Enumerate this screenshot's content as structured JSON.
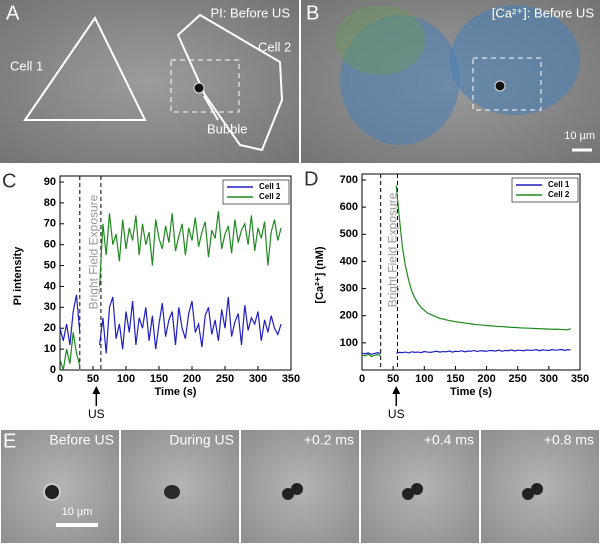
{
  "panels": {
    "a": {
      "label": "A",
      "title": "PI: Before US",
      "cell1": "Cell 1",
      "cell2": "Cell 2",
      "bubble": "Bubble"
    },
    "b": {
      "label": "B",
      "title": "[Ca²⁺]: Before US",
      "scale": "10 µm"
    },
    "e": {
      "label": "E",
      "frames": [
        "Before US",
        "During US",
        "+0.2 ms",
        "+0.4 ms",
        "+0.8 ms"
      ],
      "scale": "10 µm"
    }
  },
  "chart_data": [
    {
      "type": "line",
      "label": "C",
      "ylabel": "PI intensity",
      "xlabel": "Time (s)",
      "annotation": "Bright Field Exposure",
      "arrow_label": "US",
      "arrow_x": 55,
      "vlines": [
        30,
        62
      ],
      "xlim": [
        0,
        350
      ],
      "xticks": [
        0,
        50,
        100,
        150,
        200,
        250,
        300,
        350
      ],
      "ylim": [
        0,
        90
      ],
      "yticks": [
        0,
        10,
        20,
        30,
        40,
        50,
        60,
        70,
        80,
        90
      ],
      "x": [
        0,
        5,
        10,
        15,
        20,
        25,
        30,
        35,
        40,
        45,
        50,
        55,
        60,
        65,
        70,
        75,
        80,
        85,
        90,
        95,
        100,
        105,
        110,
        115,
        120,
        125,
        130,
        135,
        140,
        145,
        150,
        155,
        160,
        165,
        170,
        175,
        180,
        185,
        190,
        195,
        200,
        205,
        210,
        215,
        220,
        225,
        230,
        235,
        240,
        245,
        250,
        255,
        260,
        265,
        270,
        275,
        280,
        285,
        290,
        295,
        300,
        305,
        310,
        315,
        320,
        325,
        330,
        335
      ],
      "series": [
        {
          "name": "Cell 1",
          "color": "#1f1fbf",
          "values": [
            20,
            14,
            22,
            12,
            28,
            36,
            18,
            null,
            null,
            null,
            null,
            null,
            12,
            25,
            8,
            30,
            35,
            15,
            22,
            10,
            28,
            18,
            33,
            12,
            25,
            20,
            30,
            14,
            26,
            10,
            22,
            32,
            16,
            24,
            28,
            12,
            30,
            20,
            15,
            27,
            33,
            18,
            22,
            11,
            26,
            30,
            17,
            24,
            14,
            29,
            20,
            35,
            16,
            23,
            27,
            12,
            31,
            19,
            25,
            22,
            28,
            14,
            24,
            18,
            26,
            20,
            17,
            22
          ]
        },
        {
          "name": "Cell 2",
          "color": "#1f8a1f",
          "values": [
            5,
            0,
            10,
            3,
            18,
            8,
            2,
            null,
            null,
            null,
            null,
            null,
            40,
            70,
            55,
            75,
            60,
            65,
            52,
            72,
            58,
            68,
            62,
            74,
            55,
            70,
            60,
            66,
            50,
            72,
            63,
            58,
            69,
            61,
            75,
            57,
            64,
            70,
            55,
            68,
            62,
            73,
            59,
            66,
            71,
            54,
            67,
            63,
            76,
            58,
            65,
            69,
            56,
            72,
            61,
            67,
            70,
            60,
            74,
            57,
            68,
            63,
            71,
            50,
            66,
            72,
            62,
            68
          ]
        }
      ]
    },
    {
      "type": "line",
      "label": "D",
      "ylabel": "[Ca²⁺] (nM)",
      "xlabel": "Time (s)",
      "annotation": "Bright Field Exposure",
      "arrow_label": "US",
      "arrow_x": 55,
      "vlines": [
        30,
        57
      ],
      "xlim": [
        0,
        350
      ],
      "xticks": [
        0,
        50,
        100,
        150,
        200,
        250,
        300,
        350
      ],
      "ylim": [
        0,
        700
      ],
      "yticks": [
        100,
        200,
        300,
        400,
        500,
        600,
        700
      ],
      "x": [
        0,
        5,
        10,
        15,
        20,
        25,
        30,
        35,
        40,
        45,
        50,
        55,
        60,
        65,
        70,
        75,
        80,
        85,
        90,
        95,
        100,
        105,
        110,
        115,
        120,
        125,
        130,
        135,
        140,
        145,
        150,
        155,
        160,
        165,
        170,
        175,
        180,
        185,
        190,
        195,
        200,
        205,
        210,
        215,
        220,
        225,
        230,
        235,
        240,
        245,
        250,
        255,
        260,
        265,
        270,
        275,
        280,
        285,
        290,
        295,
        300,
        305,
        310,
        315,
        320,
        325,
        330,
        335
      ],
      "series": [
        {
          "name": "Cell 1",
          "color": "#1f1fbf",
          "values": [
            62,
            60,
            63,
            58,
            61,
            64,
            60,
            null,
            null,
            null,
            null,
            62,
            65,
            64,
            66,
            63,
            67,
            65,
            66,
            64,
            68,
            66,
            65,
            67,
            69,
            66,
            68,
            67,
            70,
            66,
            69,
            68,
            71,
            67,
            70,
            69,
            72,
            68,
            71,
            70,
            69,
            72,
            71,
            70,
            73,
            69,
            72,
            71,
            74,
            70,
            73,
            72,
            71,
            74,
            72,
            73,
            75,
            71,
            74,
            73,
            72,
            75,
            73,
            74,
            76,
            72,
            75,
            74
          ]
        },
        {
          "name": "Cell 2",
          "color": "#1f8a1f",
          "values": [
            55,
            52,
            58,
            50,
            54,
            57,
            53,
            null,
            null,
            null,
            null,
            680,
            560,
            450,
            380,
            330,
            290,
            265,
            245,
            230,
            220,
            210,
            205,
            200,
            195,
            190,
            188,
            185,
            182,
            180,
            178,
            176,
            175,
            173,
            172,
            170,
            168,
            167,
            166,
            165,
            164,
            163,
            162,
            161,
            160,
            160,
            159,
            158,
            157,
            157,
            156,
            155,
            155,
            154,
            154,
            153,
            153,
            152,
            152,
            151,
            151,
            150,
            150,
            150,
            149,
            149,
            148,
            152
          ]
        }
      ]
    }
  ]
}
